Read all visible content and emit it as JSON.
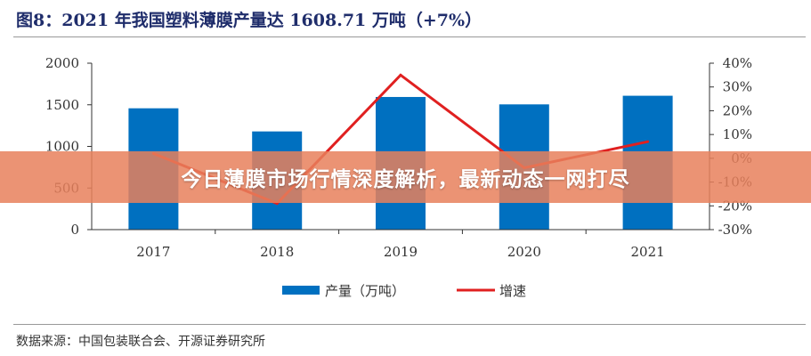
{
  "title": "图8：2021 年我国塑料薄膜产量达 1608.71 万吨（+7%）",
  "source": "数据来源：中国包装联合会、开源证券研究所",
  "banner": "今日薄膜市场行情深度解析，最新动态一网打尽",
  "chart_data": {
    "type": "bar+line",
    "categories": [
      "2017",
      "2018",
      "2019",
      "2020",
      "2021"
    ],
    "series": [
      {
        "name": "产量（万吨）",
        "type": "bar",
        "axis": "left",
        "color": "#0070c0",
        "values": [
          1458,
          1180,
          1594,
          1505,
          1608.71
        ]
      },
      {
        "name": "增速",
        "type": "line",
        "axis": "right",
        "color": "#e02020",
        "values": [
          2,
          -19,
          35,
          -4,
          7
        ]
      }
    ],
    "left_axis": {
      "ylim": [
        0,
        2000
      ],
      "ticks": [
        "0",
        "500",
        "1000",
        "1500",
        "2000"
      ]
    },
    "right_axis": {
      "ylim": [
        -30,
        40
      ],
      "ticks": [
        "-30%",
        "-20%",
        "-10%",
        "0%",
        "10%",
        "20%",
        "30%",
        "40%"
      ]
    },
    "grid": false,
    "legend": "bottom"
  }
}
